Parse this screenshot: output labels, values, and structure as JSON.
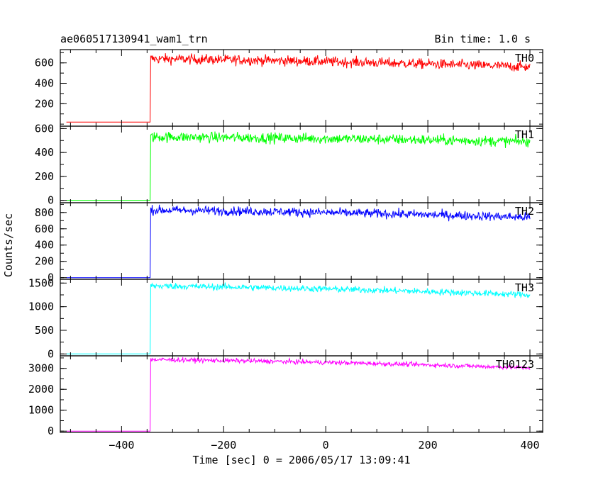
{
  "header": {
    "title": "ae060517130941_wam1_trn",
    "bin_time": "Bin time: 1.0 s"
  },
  "chart_data": {
    "type": "line",
    "title": "ae060517130941_wam1_trn",
    "xlabel": "Time [sec] 0 = 2006/05/17 13:09:41",
    "ylabel": "Counts/sec",
    "xlim": [
      -520,
      425
    ],
    "xticks": [
      -400,
      -200,
      0,
      200,
      400
    ],
    "xtick_labels": [
      "−400",
      "−200",
      "0",
      "200",
      "400"
    ],
    "onset_time": -343,
    "panels": [
      {
        "name": "TH0",
        "color": "#ff0000",
        "ylim": [
          -20,
          730
        ],
        "yticks": [
          200,
          400,
          600
        ],
        "ytick_labels": [
          "200",
          "400",
          "600"
        ],
        "background": 20,
        "level_start": 640,
        "level_end": 560,
        "noise": 25,
        "points": [
          {
            "t": -500,
            "v": 20
          },
          {
            "t": -344,
            "v": 20
          },
          {
            "t": -343,
            "v": 640
          },
          {
            "t": -300,
            "v": 635
          },
          {
            "t": -200,
            "v": 630
          },
          {
            "t": -100,
            "v": 622
          },
          {
            "t": 0,
            "v": 615
          },
          {
            "t": 100,
            "v": 600
          },
          {
            "t": 200,
            "v": 590
          },
          {
            "t": 300,
            "v": 575
          },
          {
            "t": 400,
            "v": 560
          }
        ]
      },
      {
        "name": "TH1",
        "color": "#00ff00",
        "ylim": [
          -20,
          620
        ],
        "yticks": [
          0,
          200,
          400,
          600
        ],
        "ytick_labels": [
          "0",
          "200",
          "400",
          "600"
        ],
        "background": 0,
        "level_start": 530,
        "level_end": 490,
        "noise": 22,
        "points": [
          {
            "t": -500,
            "v": 0
          },
          {
            "t": -344,
            "v": 0
          },
          {
            "t": -343,
            "v": 530
          },
          {
            "t": -200,
            "v": 525
          },
          {
            "t": 0,
            "v": 515
          },
          {
            "t": 200,
            "v": 505
          },
          {
            "t": 400,
            "v": 490
          }
        ]
      },
      {
        "name": "TH2",
        "color": "#0000ff",
        "ylim": [
          -20,
          920
        ],
        "yticks": [
          0,
          200,
          400,
          600,
          800
        ],
        "ytick_labels": [
          "0",
          "200",
          "400",
          "600",
          "800"
        ],
        "background": 0,
        "level_start": 830,
        "level_end": 740,
        "noise": 28,
        "points": [
          {
            "t": -500,
            "v": 0
          },
          {
            "t": -344,
            "v": 0
          },
          {
            "t": -343,
            "v": 830
          },
          {
            "t": -200,
            "v": 820
          },
          {
            "t": 0,
            "v": 800
          },
          {
            "t": 200,
            "v": 780
          },
          {
            "t": 400,
            "v": 740
          }
        ]
      },
      {
        "name": "TH3",
        "color": "#00ffff",
        "ylim": [
          -40,
          1580
        ],
        "yticks": [
          0,
          500,
          1000,
          1500
        ],
        "ytick_labels": [
          "0",
          "500",
          "1000",
          "1500"
        ],
        "background": 0,
        "level_start": 1440,
        "level_end": 1250,
        "noise": 35,
        "points": [
          {
            "t": -500,
            "v": 0
          },
          {
            "t": -344,
            "v": 0
          },
          {
            "t": -343,
            "v": 1440
          },
          {
            "t": -200,
            "v": 1430
          },
          {
            "t": 0,
            "v": 1390
          },
          {
            "t": 200,
            "v": 1330
          },
          {
            "t": 400,
            "v": 1250
          }
        ]
      },
      {
        "name": "TH0123",
        "color": "#ff00ff",
        "ylim": [
          -60,
          3600
        ],
        "yticks": [
          0,
          1000,
          2000,
          3000
        ],
        "ytick_labels": [
          "0",
          "1000",
          "2000",
          "3000"
        ],
        "background": 0,
        "level_start": 3420,
        "level_end": 3020,
        "noise": 55,
        "points": [
          {
            "t": -500,
            "v": 0
          },
          {
            "t": -344,
            "v": 0
          },
          {
            "t": -343,
            "v": 3420
          },
          {
            "t": -200,
            "v": 3400
          },
          {
            "t": 0,
            "v": 3330
          },
          {
            "t": 200,
            "v": 3200
          },
          {
            "t": 400,
            "v": 3020
          }
        ]
      }
    ]
  }
}
